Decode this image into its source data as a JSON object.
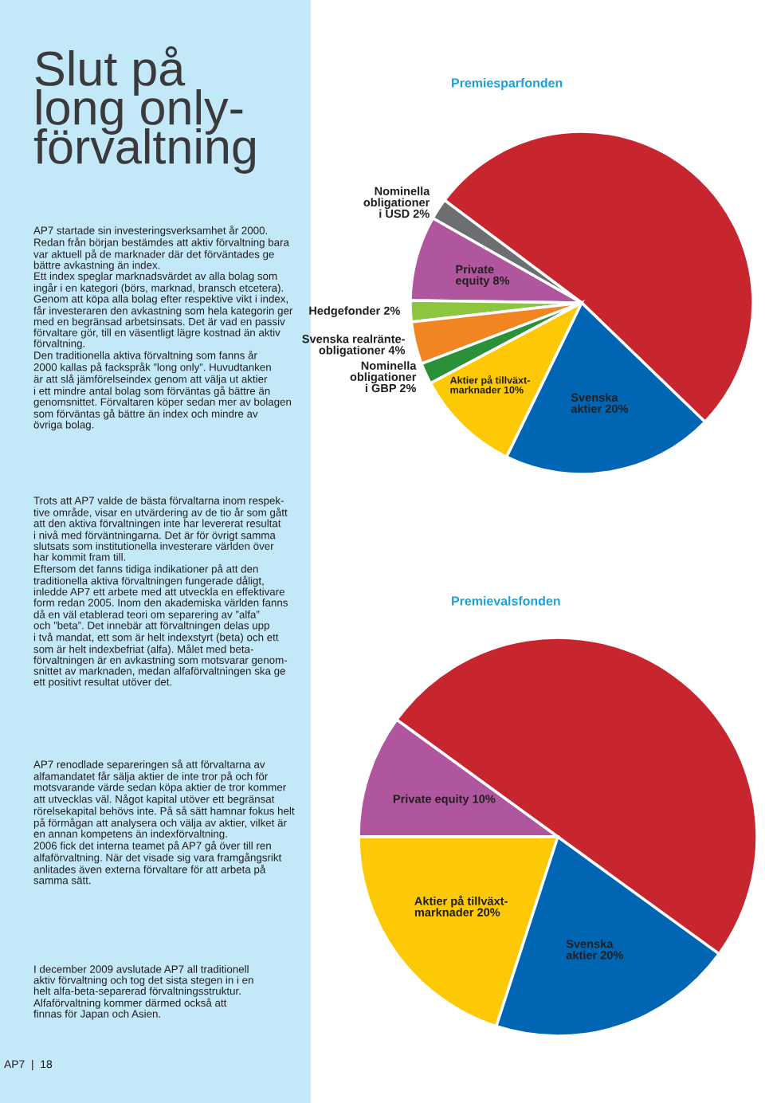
{
  "chart_data": [
    {
      "type": "pie",
      "title": "Premiesparfonden",
      "categories": [
        null,
        "Nominella\nobligationer\ni USD",
        "Private\nequity",
        "Hedgefonder",
        "Svenska realränte-\nobligationer",
        "Nominella\nobligationer\ni GBP",
        "Aktier på tillväxt-\nmarknader",
        "Svenska\naktier"
      ],
      "values": [
        52,
        2,
        8,
        2,
        4,
        2,
        10,
        20
      ],
      "value_labels": [
        null,
        "2%",
        "8%",
        "2%",
        "4%",
        "2%",
        "10%",
        "20%"
      ],
      "colors": [
        "#c8262e",
        "#6d6e71",
        "#b0569f",
        "#8cc63f",
        "#f08521",
        "#2a9139",
        "#fdc904",
        "#0066b3"
      ],
      "annotations": [
        "Slut på\nlong only-\nförvaltning",
        "AP7 startade sin investeringsverksamhet år 2000.\nRedan från början bestämdes att aktiv förvaltning bara\nvar aktuell på de marknader där det förväntades ge\nbättre avkastning än index.\nEtt index speglar marknadsvärdet av alla bolag som\ningår i en kategori (börs, marknad, bransch etcetera).\nGenom att köpa alla bolag efter respektive vikt i index,\nfår investeraren den avkastning som hela kategorin ger\nmed en begränsad arbetsinsats. Det är vad en passiv\nförvaltare gör, till en väsentligt lägre kostnad än aktiv\nförvaltning.\nDen traditionella aktiva förvaltning som fanns år\n2000 kallas på fackspråk ”long only”. Huvudtanken\när att slå jämförelseindex genom att välja ut aktier\ni ett mindre antal bolag som förväntas gå bättre än\ngenomsnittet. Förvaltaren köper sedan mer av bolagen\nsom förväntas gå bättre än index och mindre av\növriga bolag.",
        "Trots att AP7 valde de bästa förvaltarna inom respek-\ntive område, visar en utvärdering av de tio år som gått\natt den aktiva förvaltningen inte har levererat resultat\ni nivå med förväntningarna. Det är för övrigt samma\nslutsats som institutionella investerare världen över\nhar kommit fram till.\nEftersom det fanns tidiga indikationer på att den\ntraditionella aktiva förvaltningen fungerade dåligt,\ninledde AP7 ett arbete med att utveckla en effektivare\nform redan 2005. Inom den akademiska världen fanns\ndå en väl etablerad teori om separering av ”alfa”\noch ”beta”. Det innebär att förvaltningen delas upp\ni två mandat, ett som är helt indexstyrt (beta) och ett\nsom är helt indexbefriat (alfa). Målet med beta-\nförvaltningen är en avkastning som motsvarar genom-\nsnittet av marknaden, medan alfaförvaltningen ska ge\nett positivt resultat utöver det.",
        "AP7 renodlade separeringen så att förvaltarna av\nalfamandatet får sälja aktier de inte tror på och för\nmotsvarande värde sedan köpa aktier de tror kommer\natt utvecklas väl. Något kapital utöver ett begränsat\nrörelsekapital behövs inte. På så sätt hamnar fokus helt\npå förmågan att analysera och välja av aktier, vilket är\nen annan kompetens än indexförvaltning.\n2006 fick det interna teamet på AP7 gå över till ren\nalfaförvaltning. När det visade sig vara framgångsrikt\nanlitades även externa förvaltare för att arbeta på\nsamma sätt.",
        "I december 2009 avslutade AP7 all traditionell\naktiv förvaltning och tog det sista stegen in i en\nhelt alfa-beta-separerad förvaltningsstruktur.\nAlfaförvaltning kommer därmed också att\nfinnas för Japan och Asien.",
        "AP7  |  18"
      ]
    },
    {
      "type": "pie",
      "title": "Premievalsfonden",
      "categories": [
        null,
        "Private equity",
        "Aktier på tillväxt-\nmarknader",
        "Svenska\naktier"
      ],
      "values": [
        50,
        10,
        20,
        20
      ],
      "value_labels": [
        null,
        "10%",
        "20%",
        "20%"
      ],
      "colors": [
        "#c8262e",
        "#b0569f",
        "#fdc904",
        "#0066b3"
      ]
    }
  ]
}
